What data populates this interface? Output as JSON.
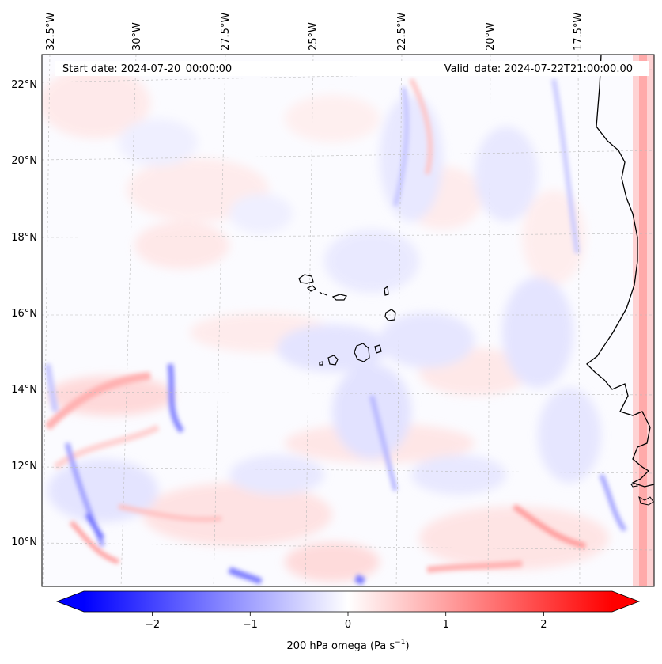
{
  "header": {
    "start_date": "Start date: 2024-07-20_00:00:00",
    "valid_date": "Valid_date: 2024-07-22T21:00:00.00"
  },
  "map": {
    "region": "Cape Verde / West Africa coast",
    "lon_labels": [
      "32.5°W",
      "30°W",
      "27.5°W",
      "25°W",
      "22.5°W",
      "20°W",
      "17.5°W"
    ],
    "lat_labels": [
      "22°N",
      "20°N",
      "18°N",
      "16°N",
      "14°N",
      "12°N",
      "10°N"
    ],
    "gridlines": true,
    "coastline_color": "#000000"
  },
  "colorbar": {
    "label_main": "200 hPa omega (Pa s",
    "label_sup": "−1",
    "label_end": ")",
    "ticks": [
      "−2",
      "−1",
      "0",
      "1",
      "2"
    ],
    "tick_values": [
      -2,
      -1,
      0,
      1,
      2
    ],
    "range": [
      -2.7,
      2.7
    ],
    "extend": "both",
    "colormap": "bwr",
    "low_color": "#0000ff",
    "mid_color": "#ffffff",
    "high_color": "#ff0000"
  }
}
